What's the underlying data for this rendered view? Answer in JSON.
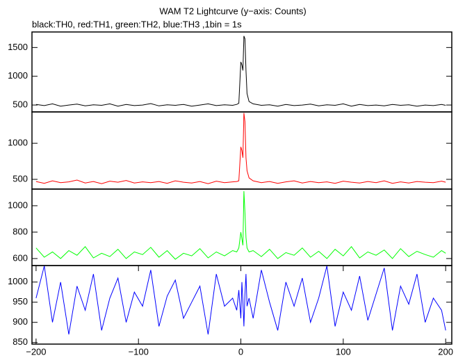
{
  "chart_data": [
    {
      "type": "line",
      "title": "WAM T2 Lightcurve (y−axis: Counts)",
      "subtitle": "black:TH0, red:TH1, green:TH2, blue:TH3 ,1bin = 1s",
      "x": [
        -200,
        -192,
        -184,
        -176,
        -168,
        -160,
        -152,
        -144,
        -136,
        -128,
        -120,
        -112,
        -104,
        -96,
        -88,
        -80,
        -72,
        -64,
        -56,
        -48,
        -40,
        -32,
        -24,
        -16,
        -8,
        -4,
        -2,
        0,
        1,
        2,
        3,
        4,
        5,
        6,
        8,
        12,
        20,
        28,
        36,
        44,
        52,
        60,
        68,
        76,
        84,
        92,
        100,
        108,
        116,
        124,
        132,
        140,
        148,
        156,
        164,
        172,
        180,
        188,
        196,
        200
      ],
      "values": [
        510,
        490,
        520,
        480,
        500,
        515,
        485,
        505,
        495,
        520,
        480,
        510,
        490,
        500,
        525,
        485,
        505,
        495,
        510,
        480,
        500,
        520,
        490,
        505,
        495,
        510,
        530,
        1250,
        1200,
        1100,
        1700,
        1650,
        1100,
        700,
        560,
        520,
        495,
        505,
        480,
        510,
        490,
        500,
        515,
        485,
        505,
        495,
        520,
        480,
        510,
        490,
        500,
        485,
        510,
        495,
        505,
        480,
        500,
        490,
        510,
        495
      ],
      "color": "#000000",
      "xlim": [
        -204,
        206
      ],
      "ylim": [
        380,
        1770
      ],
      "yticks": [
        500,
        1000,
        1500
      ]
    },
    {
      "type": "line",
      "x": [
        -200,
        -192,
        -184,
        -176,
        -168,
        -160,
        -152,
        -144,
        -136,
        -128,
        -120,
        -112,
        -104,
        -96,
        -88,
        -80,
        -72,
        -64,
        -56,
        -48,
        -40,
        -32,
        -24,
        -16,
        -8,
        -4,
        -2,
        0,
        1,
        2,
        3,
        4,
        5,
        6,
        8,
        12,
        20,
        28,
        36,
        44,
        52,
        60,
        68,
        76,
        84,
        92,
        100,
        108,
        116,
        124,
        132,
        140,
        148,
        156,
        164,
        172,
        180,
        188,
        196,
        200
      ],
      "values": [
        470,
        445,
        480,
        455,
        465,
        490,
        450,
        470,
        440,
        475,
        460,
        485,
        450,
        465,
        455,
        470,
        445,
        480,
        460,
        450,
        470,
        440,
        475,
        455,
        465,
        470,
        480,
        950,
        900,
        800,
        1420,
        1300,
        800,
        620,
        520,
        480,
        455,
        470,
        445,
        465,
        480,
        450,
        470,
        455,
        465,
        445,
        475,
        460,
        450,
        470,
        455,
        480,
        445,
        465,
        450,
        470,
        460,
        455,
        475,
        460
      ],
      "color": "#ff0000",
      "xlim": [
        -204,
        206
      ],
      "ylim": [
        365,
        1435
      ],
      "yticks": [
        500,
        1000
      ]
    },
    {
      "type": "line",
      "x": [
        -200,
        -192,
        -184,
        -176,
        -168,
        -160,
        -152,
        -144,
        -136,
        -128,
        -120,
        -112,
        -104,
        -96,
        -88,
        -80,
        -72,
        -64,
        -56,
        -48,
        -40,
        -32,
        -24,
        -16,
        -8,
        -4,
        -2,
        0,
        1,
        2,
        3,
        4,
        5,
        6,
        8,
        12,
        20,
        28,
        36,
        44,
        52,
        60,
        68,
        76,
        84,
        92,
        100,
        108,
        116,
        124,
        132,
        140,
        148,
        156,
        164,
        172,
        180,
        188,
        196,
        200
      ],
      "values": [
        680,
        610,
        650,
        600,
        660,
        625,
        690,
        605,
        640,
        615,
        670,
        600,
        650,
        630,
        685,
        610,
        660,
        595,
        640,
        620,
        675,
        605,
        650,
        620,
        660,
        650,
        680,
        800,
        750,
        700,
        1110,
        950,
        760,
        680,
        650,
        660,
        615,
        670,
        600,
        645,
        625,
        680,
        610,
        655,
        600,
        670,
        620,
        690,
        605,
        650,
        625,
        665,
        600,
        675,
        615,
        655,
        630,
        610,
        660,
        640
      ],
      "color": "#00ff00",
      "xlim": [
        -204,
        206
      ],
      "ylim": [
        547,
        1126
      ],
      "yticks": [
        600,
        800,
        1000
      ]
    },
    {
      "type": "line",
      "x": [
        -200,
        -192,
        -184,
        -176,
        -168,
        -160,
        -152,
        -144,
        -136,
        -128,
        -120,
        -112,
        -104,
        -96,
        -88,
        -80,
        -72,
        -64,
        -56,
        -48,
        -40,
        -32,
        -24,
        -16,
        -8,
        -4,
        -2,
        0,
        1,
        2,
        3,
        4,
        5,
        6,
        8,
        12,
        20,
        28,
        36,
        44,
        52,
        60,
        68,
        76,
        84,
        92,
        100,
        108,
        116,
        124,
        132,
        140,
        148,
        156,
        164,
        172,
        180,
        188,
        196,
        200
      ],
      "values": [
        960,
        1040,
        900,
        1000,
        870,
        990,
        930,
        1020,
        880,
        960,
        1010,
        900,
        975,
        940,
        1030,
        890,
        965,
        1005,
        910,
        950,
        990,
        870,
        1020,
        940,
        960,
        930,
        980,
        910,
        1000,
        950,
        890,
        970,
        1020,
        940,
        960,
        910,
        1030,
        950,
        880,
        1000,
        940,
        1010,
        900,
        960,
        1040,
        890,
        975,
        930,
        1015,
        905,
        970,
        1035,
        880,
        990,
        945,
        1020,
        900,
        960,
        930,
        880
      ],
      "color": "#0000ff",
      "xlim": [
        -204,
        206
      ],
      "ylim": [
        846,
        1041
      ],
      "yticks": [
        850,
        900,
        950,
        1000
      ],
      "xticks": [
        {
          "value": -200,
          "label": "−200"
        },
        {
          "value": -100,
          "label": "−100"
        },
        0,
        100,
        200
      ]
    }
  ]
}
